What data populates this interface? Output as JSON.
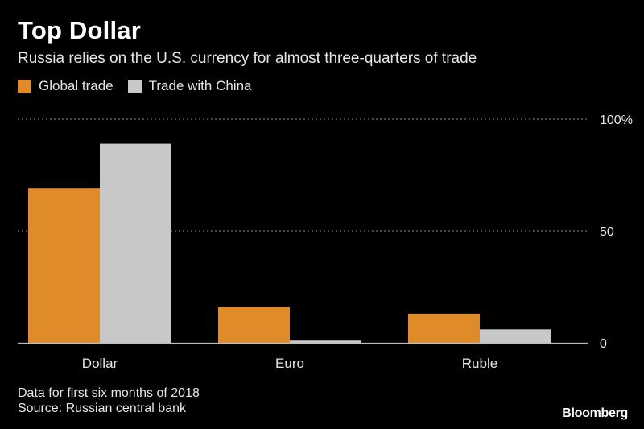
{
  "header": {
    "title": "Top Dollar",
    "subtitle": "Russia relies on the U.S. currency for almost three-quarters of trade"
  },
  "legend": [
    {
      "label": "Global trade",
      "color": "#E08B2A"
    },
    {
      "label": "Trade with China",
      "color": "#C8C8C8"
    }
  ],
  "footer": {
    "note": "Data for first six months of 2018",
    "source": "Source: Russian central bank",
    "brand": "Bloomberg"
  },
  "chart_data": {
    "type": "bar",
    "categories": [
      "Dollar",
      "Euro",
      "Ruble"
    ],
    "series": [
      {
        "name": "Global trade",
        "values": [
          69,
          16,
          13
        ],
        "color": "#E08B2A"
      },
      {
        "name": "Trade with China",
        "values": [
          89,
          1,
          6
        ],
        "color": "#C8C8C8"
      }
    ],
    "ylim": [
      0,
      100
    ],
    "yticks": [
      0,
      50,
      100
    ],
    "ytick_labels": [
      "0",
      "50",
      "100%"
    ],
    "grid": true,
    "legend_position": "top-left"
  }
}
